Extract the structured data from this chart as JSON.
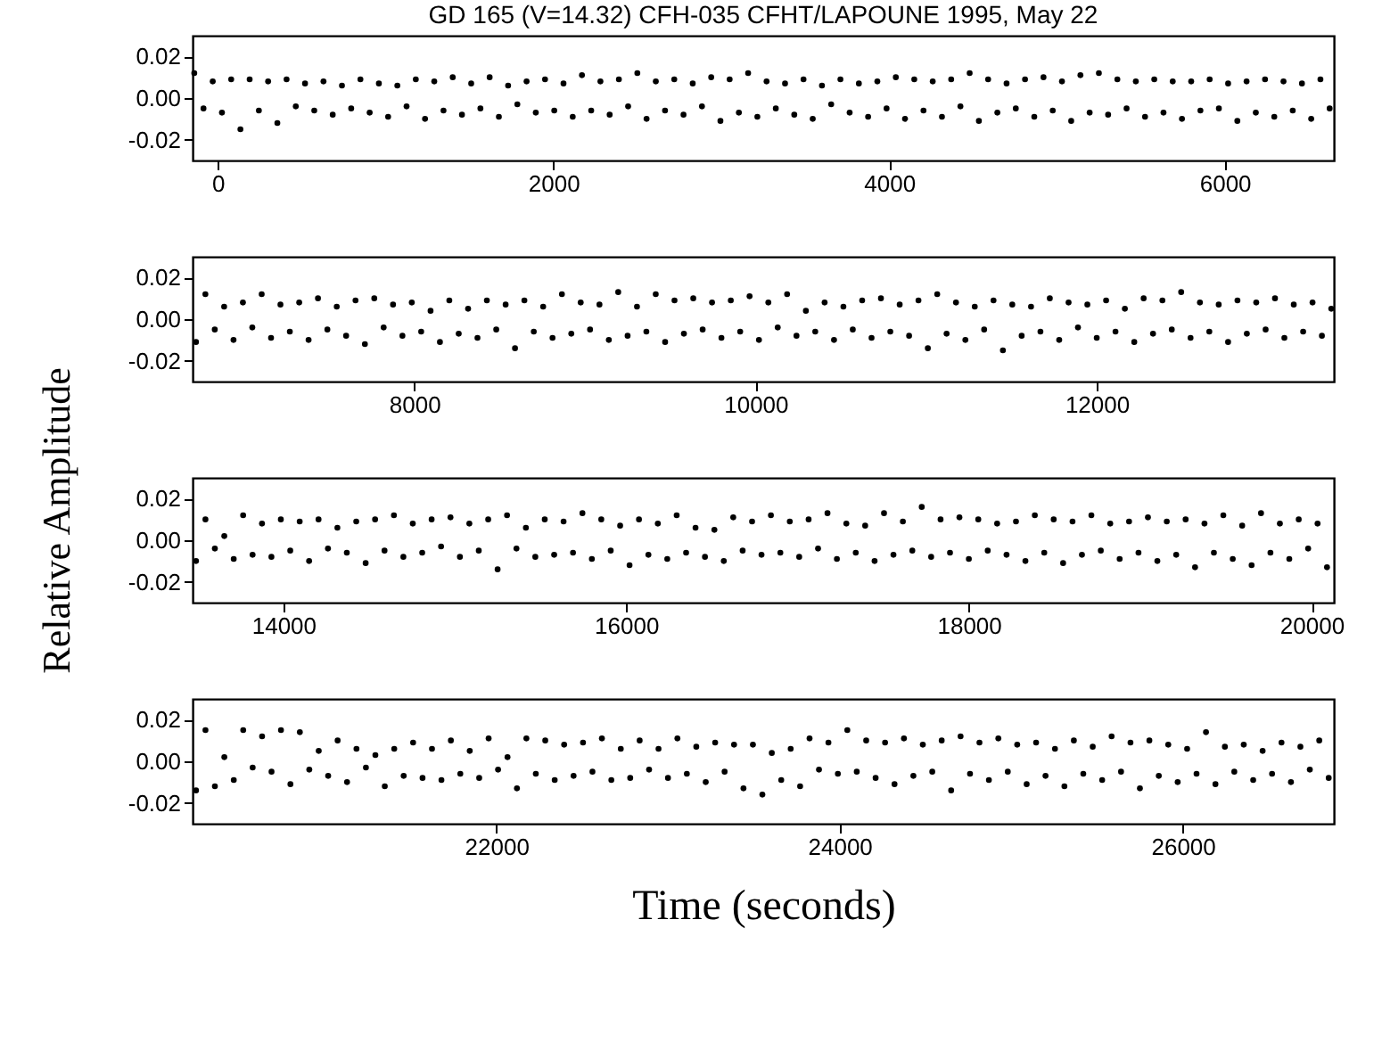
{
  "chart_data": [
    {
      "type": "scatter",
      "title": "GD 165 (V=14.32)  CFH-035 CFHT/LAPOUNE 1995, May 22",
      "ylabel": "Relative Amplitude",
      "marker": "circle",
      "xlim": [
        -150,
        6650
      ],
      "xticks": [
        0,
        2000,
        4000,
        6000
      ],
      "ylim": [
        -0.03,
        0.03
      ],
      "yticks": [
        {
          "value": -0.02,
          "label": "-0.02"
        },
        {
          "value": 0,
          "label": "0.00"
        },
        {
          "value": 0.02,
          "label": "0.02"
        }
      ],
      "series": [
        {
          "color": "#000000",
          "x": [
            -140,
            -85,
            -30,
            25,
            80,
            135,
            190,
            245,
            300,
            355,
            410,
            465,
            520,
            575,
            630,
            685,
            740,
            795,
            850,
            905,
            960,
            1015,
            1070,
            1125,
            1180,
            1235,
            1290,
            1345,
            1400,
            1455,
            1510,
            1565,
            1620,
            1675,
            1730,
            1785,
            1840,
            1895,
            1950,
            2005,
            2060,
            2115,
            2170,
            2225,
            2280,
            2335,
            2390,
            2445,
            2500,
            2555,
            2610,
            2665,
            2720,
            2775,
            2830,
            2885,
            2940,
            2995,
            3050,
            3105,
            3160,
            3215,
            3270,
            3325,
            3380,
            3435,
            3490,
            3545,
            3600,
            3655,
            3710,
            3765,
            3820,
            3875,
            3930,
            3985,
            4040,
            4095,
            4150,
            4205,
            4260,
            4315,
            4370,
            4425,
            4480,
            4535,
            4590,
            4645,
            4700,
            4755,
            4810,
            4865,
            4920,
            4975,
            5030,
            5085,
            5140,
            5195,
            5250,
            5305,
            5360,
            5415,
            5470,
            5525,
            5580,
            5635,
            5690,
            5745,
            5800,
            5855,
            5910,
            5965,
            6020,
            6075,
            6130,
            6185,
            6240,
            6295,
            6350,
            6405,
            6460,
            6515,
            6570,
            6625
          ],
          "values": [
            0.012,
            -0.005,
            0.008,
            -0.007,
            0.009,
            -0.015,
            0.009,
            -0.006,
            0.008,
            -0.012,
            0.009,
            -0.004,
            0.007,
            -0.006,
            0.008,
            -0.008,
            0.006,
            -0.005,
            0.009,
            -0.007,
            0.007,
            -0.009,
            0.006,
            -0.004,
            0.009,
            -0.01,
            0.008,
            -0.006,
            0.01,
            -0.008,
            0.007,
            -0.005,
            0.01,
            -0.009,
            0.006,
            -0.003,
            0.008,
            -0.007,
            0.009,
            -0.006,
            0.007,
            -0.009,
            0.011,
            -0.006,
            0.008,
            -0.008,
            0.009,
            -0.004,
            0.012,
            -0.01,
            0.008,
            -0.006,
            0.009,
            -0.008,
            0.007,
            -0.004,
            0.01,
            -0.011,
            0.009,
            -0.007,
            0.012,
            -0.009,
            0.008,
            -0.005,
            0.007,
            -0.008,
            0.009,
            -0.01,
            0.006,
            -0.003,
            0.009,
            -0.007,
            0.007,
            -0.009,
            0.008,
            -0.005,
            0.01,
            -0.01,
            0.009,
            -0.006,
            0.008,
            -0.009,
            0.009,
            -0.004,
            0.012,
            -0.011,
            0.009,
            -0.007,
            0.007,
            -0.005,
            0.009,
            -0.009,
            0.01,
            -0.006,
            0.008,
            -0.011,
            0.011,
            -0.007,
            0.012,
            -0.008,
            0.009,
            -0.005,
            0.008,
            -0.009,
            0.009,
            -0.007,
            0.008,
            -0.01,
            0.008,
            -0.006,
            0.009,
            -0.005,
            0.007,
            -0.011,
            0.008,
            -0.007,
            0.009,
            -0.009,
            0.008,
            -0.006,
            0.007,
            -0.01,
            0.009,
            -0.005
          ]
        }
      ]
    },
    {
      "type": "scatter",
      "marker": "circle",
      "xlim": [
        6700,
        13390
      ],
      "xticks": [
        8000,
        10000,
        12000
      ],
      "ylim": [
        -0.03,
        0.03
      ],
      "yticks": [
        {
          "value": -0.02,
          "label": "-0.02"
        },
        {
          "value": 0,
          "label": "0.00"
        },
        {
          "value": 0.02,
          "label": "0.02"
        }
      ],
      "series": [
        {
          "color": "#000000",
          "x": [
            6720,
            6775,
            6830,
            6885,
            6940,
            6995,
            7050,
            7105,
            7160,
            7215,
            7270,
            7325,
            7380,
            7435,
            7490,
            7545,
            7600,
            7655,
            7710,
            7765,
            7820,
            7875,
            7930,
            7985,
            8040,
            8095,
            8150,
            8205,
            8260,
            8315,
            8370,
            8425,
            8480,
            8535,
            8590,
            8645,
            8700,
            8755,
            8810,
            8865,
            8920,
            8975,
            9030,
            9085,
            9140,
            9195,
            9250,
            9305,
            9360,
            9415,
            9470,
            9525,
            9580,
            9635,
            9690,
            9745,
            9800,
            9855,
            9910,
            9965,
            10020,
            10075,
            10130,
            10185,
            10240,
            10295,
            10350,
            10405,
            10460,
            10515,
            10570,
            10625,
            10680,
            10735,
            10790,
            10845,
            10900,
            10955,
            11010,
            11065,
            11120,
            11175,
            11230,
            11285,
            11340,
            11395,
            11450,
            11505,
            11560,
            11615,
            11670,
            11725,
            11780,
            11835,
            11890,
            11945,
            12000,
            12055,
            12110,
            12165,
            12220,
            12275,
            12330,
            12385,
            12440,
            12495,
            12550,
            12605,
            12660,
            12715,
            12770,
            12825,
            12880,
            12935,
            12990,
            13045,
            13100,
            13155,
            13210,
            13265,
            13320,
            13375
          ],
          "values": [
            -0.011,
            0.012,
            -0.005,
            0.006,
            -0.01,
            0.008,
            -0.004,
            0.012,
            -0.009,
            0.007,
            -0.006,
            0.008,
            -0.01,
            0.01,
            -0.005,
            0.006,
            -0.008,
            0.009,
            -0.012,
            0.01,
            -0.004,
            0.007,
            -0.008,
            0.008,
            -0.006,
            0.004,
            -0.011,
            0.009,
            -0.007,
            0.005,
            -0.009,
            0.009,
            -0.005,
            0.007,
            -0.014,
            0.009,
            -0.006,
            0.006,
            -0.009,
            0.012,
            -0.007,
            0.008,
            -0.005,
            0.007,
            -0.01,
            0.013,
            -0.008,
            0.006,
            -0.006,
            0.012,
            -0.011,
            0.009,
            -0.007,
            0.01,
            -0.005,
            0.008,
            -0.009,
            0.009,
            -0.006,
            0.011,
            -0.01,
            0.008,
            -0.004,
            0.012,
            -0.008,
            0.004,
            -0.006,
            0.008,
            -0.01,
            0.006,
            -0.005,
            0.009,
            -0.009,
            0.01,
            -0.006,
            0.007,
            -0.008,
            0.009,
            -0.014,
            0.012,
            -0.007,
            0.008,
            -0.01,
            0.006,
            -0.005,
            0.009,
            -0.015,
            0.007,
            -0.008,
            0.006,
            -0.006,
            0.01,
            -0.01,
            0.008,
            -0.004,
            0.007,
            -0.009,
            0.009,
            -0.006,
            0.005,
            -0.011,
            0.01,
            -0.007,
            0.009,
            -0.005,
            0.013,
            -0.009,
            0.008,
            -0.006,
            0.007,
            -0.011,
            0.009,
            -0.007,
            0.008,
            -0.005,
            0.01,
            -0.009,
            0.007,
            -0.006,
            0.008,
            -0.008,
            0.005
          ]
        }
      ]
    },
    {
      "type": "scatter",
      "marker": "circle",
      "xlim": [
        13470,
        20130
      ],
      "xticks": [
        14000,
        16000,
        18000,
        20000
      ],
      "ylim": [
        -0.03,
        0.03
      ],
      "yticks": [
        {
          "value": -0.02,
          "label": "-0.02"
        },
        {
          "value": 0,
          "label": "0.00"
        },
        {
          "value": 0.02,
          "label": "0.02"
        }
      ],
      "series": [
        {
          "color": "#000000",
          "x": [
            13490,
            13545,
            13600,
            13655,
            13710,
            13765,
            13820,
            13875,
            13930,
            13985,
            14040,
            14095,
            14150,
            14205,
            14260,
            14315,
            14370,
            14425,
            14480,
            14535,
            14590,
            14645,
            14700,
            14755,
            14810,
            14865,
            14920,
            14975,
            15030,
            15085,
            15140,
            15195,
            15250,
            15305,
            15360,
            15415,
            15470,
            15525,
            15580,
            15635,
            15690,
            15745,
            15800,
            15855,
            15910,
            15965,
            16020,
            16075,
            16130,
            16185,
            16240,
            16295,
            16350,
            16405,
            16460,
            16515,
            16570,
            16625,
            16680,
            16735,
            16790,
            16845,
            16900,
            16955,
            17010,
            17065,
            17120,
            17175,
            17230,
            17285,
            17340,
            17395,
            17450,
            17505,
            17560,
            17615,
            17670,
            17725,
            17780,
            17835,
            17890,
            17945,
            18000,
            18055,
            18110,
            18165,
            18220,
            18275,
            18330,
            18385,
            18440,
            18495,
            18550,
            18605,
            18660,
            18715,
            18770,
            18825,
            18880,
            18935,
            18990,
            19045,
            19100,
            19155,
            19210,
            19265,
            19320,
            19375,
            19430,
            19485,
            19540,
            19595,
            19650,
            19705,
            19760,
            19815,
            19870,
            19925,
            19980,
            20035,
            20090
          ],
          "values": [
            -0.01,
            0.01,
            -0.004,
            0.002,
            -0.009,
            0.012,
            -0.007,
            0.008,
            -0.008,
            0.01,
            -0.005,
            0.009,
            -0.01,
            0.01,
            -0.004,
            0.006,
            -0.006,
            0.009,
            -0.011,
            0.01,
            -0.005,
            0.012,
            -0.008,
            0.008,
            -0.006,
            0.01,
            -0.003,
            0.011,
            -0.008,
            0.008,
            -0.005,
            0.01,
            -0.014,
            0.012,
            -0.004,
            0.006,
            -0.008,
            0.01,
            -0.007,
            0.009,
            -0.006,
            0.013,
            -0.009,
            0.01,
            -0.005,
            0.007,
            -0.012,
            0.01,
            -0.007,
            0.008,
            -0.009,
            0.012,
            -0.006,
            0.006,
            -0.008,
            0.005,
            -0.01,
            0.011,
            -0.005,
            0.009,
            -0.007,
            0.012,
            -0.006,
            0.009,
            -0.008,
            0.01,
            -0.004,
            0.013,
            -0.009,
            0.008,
            -0.006,
            0.007,
            -0.01,
            0.013,
            -0.007,
            0.009,
            -0.005,
            0.016,
            -0.008,
            0.01,
            -0.006,
            0.011,
            -0.009,
            0.01,
            -0.005,
            0.008,
            -0.007,
            0.009,
            -0.01,
            0.012,
            -0.006,
            0.01,
            -0.011,
            0.009,
            -0.007,
            0.012,
            -0.005,
            0.008,
            -0.009,
            0.009,
            -0.006,
            0.011,
            -0.01,
            0.009,
            -0.007,
            0.01,
            -0.013,
            0.008,
            -0.006,
            0.012,
            -0.009,
            0.007,
            -0.012,
            0.013,
            -0.006,
            0.008,
            -0.009,
            0.01,
            -0.004,
            0.008,
            -0.013
          ]
        }
      ]
    },
    {
      "type": "scatter",
      "xlabel": "Time (seconds)",
      "marker": "circle",
      "xlim": [
        20230,
        26880
      ],
      "xticks": [
        22000,
        24000,
        26000
      ],
      "ylim": [
        -0.03,
        0.03
      ],
      "yticks": [
        {
          "value": -0.02,
          "label": "-0.02"
        },
        {
          "value": 0,
          "label": "0.00"
        },
        {
          "value": 0.02,
          "label": "0.02"
        }
      ],
      "series": [
        {
          "color": "#000000",
          "x": [
            20250,
            20305,
            20360,
            20415,
            20470,
            20525,
            20580,
            20635,
            20690,
            20745,
            20800,
            20855,
            20910,
            20965,
            21020,
            21075,
            21130,
            21185,
            21240,
            21295,
            21350,
            21405,
            21460,
            21515,
            21570,
            21625,
            21680,
            21735,
            21790,
            21845,
            21900,
            21955,
            22010,
            22065,
            22120,
            22175,
            22230,
            22285,
            22340,
            22395,
            22450,
            22505,
            22560,
            22615,
            22670,
            22725,
            22780,
            22835,
            22890,
            22945,
            23000,
            23055,
            23110,
            23165,
            23220,
            23275,
            23330,
            23385,
            23440,
            23495,
            23550,
            23605,
            23660,
            23715,
            23770,
            23825,
            23880,
            23935,
            23990,
            24045,
            24100,
            24155,
            24210,
            24265,
            24320,
            24375,
            24430,
            24485,
            24540,
            24595,
            24650,
            24705,
            24760,
            24815,
            24870,
            24925,
            24980,
            25035,
            25090,
            25145,
            25200,
            25255,
            25310,
            25365,
            25420,
            25475,
            25530,
            25585,
            25640,
            25695,
            25750,
            25805,
            25860,
            25915,
            25970,
            26025,
            26080,
            26135,
            26190,
            26245,
            26300,
            26355,
            26410,
            26465,
            26520,
            26575,
            26630,
            26685,
            26740,
            26795,
            26850
          ],
          "values": [
            -0.014,
            0.015,
            -0.012,
            0.002,
            -0.009,
            0.015,
            -0.003,
            0.012,
            -0.005,
            0.015,
            -0.011,
            0.014,
            -0.004,
            0.005,
            -0.007,
            0.01,
            -0.01,
            0.006,
            -0.003,
            0.003,
            -0.012,
            0.006,
            -0.007,
            0.009,
            -0.008,
            0.006,
            -0.009,
            0.01,
            -0.006,
            0.005,
            -0.008,
            0.011,
            -0.004,
            0.002,
            -0.013,
            0.011,
            -0.006,
            0.01,
            -0.009,
            0.008,
            -0.007,
            0.009,
            -0.005,
            0.011,
            -0.009,
            0.006,
            -0.008,
            0.01,
            -0.004,
            0.006,
            -0.008,
            0.011,
            -0.006,
            0.007,
            -0.01,
            0.009,
            -0.005,
            0.008,
            -0.013,
            0.008,
            -0.016,
            0.004,
            -0.009,
            0.006,
            -0.012,
            0.011,
            -0.004,
            0.009,
            -0.006,
            0.015,
            -0.005,
            0.01,
            -0.008,
            0.009,
            -0.011,
            0.011,
            -0.007,
            0.008,
            -0.005,
            0.01,
            -0.014,
            0.012,
            -0.006,
            0.009,
            -0.009,
            0.011,
            -0.005,
            0.008,
            -0.011,
            0.009,
            -0.007,
            0.006,
            -0.012,
            0.01,
            -0.006,
            0.007,
            -0.009,
            0.012,
            -0.005,
            0.009,
            -0.013,
            0.01,
            -0.007,
            0.008,
            -0.01,
            0.006,
            -0.006,
            0.014,
            -0.011,
            0.007,
            -0.005,
            0.008,
            -0.009,
            0.005,
            -0.006,
            0.009,
            -0.01,
            0.007,
            -0.004,
            0.01,
            -0.008
          ]
        }
      ]
    }
  ]
}
